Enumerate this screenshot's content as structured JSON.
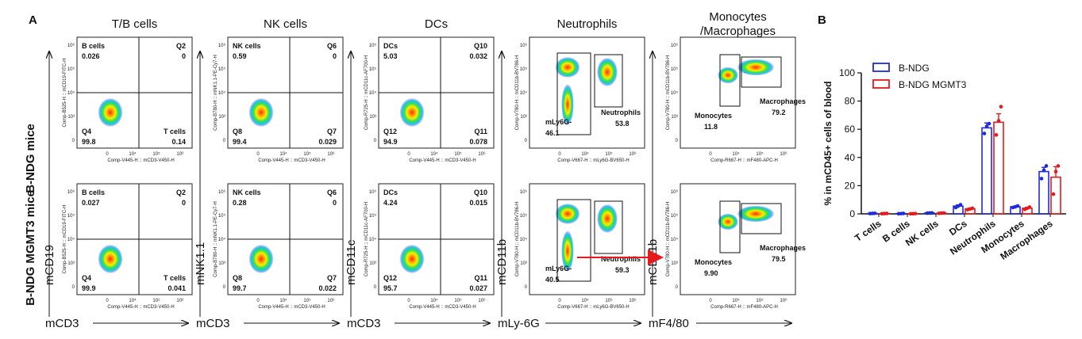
{
  "panel_a_label": "A",
  "panel_b_label": "B",
  "row_titles": [
    "B-NDG mice",
    "B-NDG MGMT3 mice"
  ],
  "colors": {
    "bndg": "#1f2bd6",
    "mgmt3": "#e41a1c",
    "arrow": "#e41a1c"
  },
  "flow_columns": [
    {
      "header": [
        "T/B cells"
      ],
      "big_y_label": "mCD19",
      "big_x_label": "mCD3",
      "y_tiny": "Comp-B525-H :: mCD19-FITC-H",
      "x_tiny": "Comp-V445-H :: mCD3-V450-H",
      "ticks_top": [
        "10⁴",
        "10⁵",
        "10⁶"
      ],
      "ticks_side": [
        "10⁶",
        "10⁵",
        "10⁴",
        "10³",
        "0"
      ],
      "plot_type": "quadrant",
      "rows": [
        {
          "q_ul_name": "B cells",
          "q_ul_val": "0.026",
          "q_ur_name": "Q2",
          "q_ur_val": "0",
          "q_ll_name": "Q4",
          "q_ll_val": "99.8",
          "q_lr_name": "T cells",
          "q_lr_val": "0.14"
        },
        {
          "q_ul_name": "B cells",
          "q_ul_val": "0.027",
          "q_ur_name": "Q2",
          "q_ur_val": "0",
          "q_ll_name": "Q4",
          "q_ll_val": "99.9",
          "q_lr_name": "T cells",
          "q_lr_val": "0.041"
        }
      ]
    },
    {
      "header": [
        "NK cells"
      ],
      "big_y_label": "mNK1.1",
      "big_x_label": "mCD3",
      "y_tiny": "Comp-B780-H :: mNK1.1-PE-Cy7-H",
      "x_tiny": "Comp-V445-H :: mCD3-V450-H",
      "ticks_top": [
        "10⁴",
        "10⁵",
        "10⁶"
      ],
      "ticks_side": [
        "10⁶",
        "10⁵",
        "10⁴",
        "10³",
        "0"
      ],
      "plot_type": "quadrant",
      "rows": [
        {
          "q_ul_name": "NK cells",
          "q_ul_val": "0.59",
          "q_ur_name": "Q6",
          "q_ur_val": "0",
          "q_ll_name": "Q8",
          "q_ll_val": "99.4",
          "q_lr_name": "Q7",
          "q_lr_val": "0.029"
        },
        {
          "q_ul_name": "NK cells",
          "q_ul_val": "0.28",
          "q_ur_name": "Q6",
          "q_ur_val": "0",
          "q_ll_name": "Q8",
          "q_ll_val": "99.7",
          "q_lr_name": "Q7",
          "q_lr_val": "0.022"
        }
      ]
    },
    {
      "header": [
        "DCs"
      ],
      "big_y_label": "mCD11c",
      "big_x_label": "mCD3",
      "y_tiny": "Comp-R725-H :: mCD11c-AF700-H",
      "x_tiny": "Comp-V445-H :: mCD3-V450-H",
      "ticks_top": [
        "10⁴",
        "10⁵",
        "10⁶"
      ],
      "ticks_side": [
        "10⁶",
        "10⁵",
        "10⁴",
        "10³",
        "0"
      ],
      "plot_type": "quadrant",
      "rows": [
        {
          "q_ul_name": "DCs",
          "q_ul_val": "5.03",
          "q_ur_name": "Q10",
          "q_ur_val": "0.032",
          "q_ll_name": "Q12",
          "q_ll_val": "94.9",
          "q_lr_name": "Q11",
          "q_lr_val": "0.078"
        },
        {
          "q_ul_name": "DCs",
          "q_ul_val": "4.24",
          "q_ur_name": "Q10",
          "q_ur_val": "0.015",
          "q_ll_name": "Q12",
          "q_ll_val": "95.7",
          "q_lr_name": "Q11",
          "q_lr_val": "0.027"
        }
      ]
    },
    {
      "header": [
        "Neutrophils"
      ],
      "big_y_label": "mCD11b",
      "big_x_label": "mLy-6G",
      "y_tiny": "Comp-V780-H :: mCD11b-BV786-H",
      "x_tiny": "Comp-V667-H :: mLy6G-BV650-H",
      "ticks_top": [
        "10⁴",
        "10⁵",
        "10⁶"
      ],
      "ticks_side": [
        "10⁶",
        "10⁵",
        "10⁴",
        "10³",
        "0"
      ],
      "plot_type": "two_gate",
      "rows": [
        {
          "g1_name": "mLy6G-",
          "g1_val": "46.1",
          "g2_name": "Neutrophils",
          "g2_val": "53.8"
        },
        {
          "g1_name": "mLy6G-",
          "g1_val": "40.5",
          "g2_name": "Neutrophils",
          "g2_val": "59.3"
        }
      ]
    },
    {
      "header": [
        "Monocytes",
        "/Macrophages"
      ],
      "big_y_label": "mCD11b",
      "big_x_label": "mF4/80",
      "y_tiny": "Comp-V780-H :: mCD11b-BV786-H",
      "x_tiny": "Comp-R667-H :: mF480-APC-H",
      "ticks_top": [
        "10⁴",
        "10⁵",
        "10⁶"
      ],
      "ticks_side": [
        "10⁶",
        "10⁵",
        "10⁴",
        "10³",
        "0"
      ],
      "plot_type": "mono_gate",
      "rows": [
        {
          "g1_name": "Monocytes",
          "g1_val": "11.8",
          "g2_name": "Macrophages",
          "g2_val": "79.2"
        },
        {
          "g1_name": "Monocytes",
          "g1_val": "9.90",
          "g2_name": "Macrophages",
          "g2_val": "79.5"
        }
      ]
    }
  ],
  "chart_data": {
    "type": "bar",
    "title": "",
    "ylabel": "% in mCD45+ cells of blood",
    "xlabel": "",
    "ylim": [
      0,
      100
    ],
    "yticks": [
      "0",
      "20",
      "40",
      "60",
      "80",
      "100"
    ],
    "categories": [
      "T cells",
      "B cells",
      "NK cells",
      "DCs",
      "Neutrophils",
      "Monocytes",
      "Macrophages"
    ],
    "legend_position": "top-right",
    "series": [
      {
        "name": "B-NDG",
        "color": "#1f2bd6",
        "values": [
          0.3,
          0.2,
          0.6,
          5.5,
          61,
          5.0,
          30
        ],
        "errors": [
          0.1,
          0.05,
          0.1,
          0.8,
          3.5,
          0.5,
          3.0
        ],
        "points": [
          [
            0.2,
            0.3,
            0.4
          ],
          [
            0.1,
            0.2,
            0.3
          ],
          [
            0.5,
            0.6,
            0.7
          ],
          [
            4.5,
            5.5,
            6.5
          ],
          [
            57,
            62,
            64
          ],
          [
            4.5,
            5.0,
            5.6
          ],
          [
            25,
            31,
            34
          ]
        ]
      },
      {
        "name": "B-NDG MGMT3",
        "color": "#e41a1c",
        "values": [
          0.2,
          0.1,
          0.5,
          3.5,
          65,
          4.0,
          26
        ],
        "errors": [
          0.05,
          0.05,
          0.1,
          0.6,
          6.0,
          0.6,
          7.5
        ],
        "points": [
          [
            0.1,
            0.2,
            0.3
          ],
          [
            0.05,
            0.1,
            0.2
          ],
          [
            0.4,
            0.5,
            0.6
          ],
          [
            3.0,
            3.5,
            4.0
          ],
          [
            56,
            66,
            76
          ],
          [
            3.2,
            4.0,
            4.8
          ],
          [
            14,
            30,
            34
          ]
        ]
      }
    ]
  }
}
